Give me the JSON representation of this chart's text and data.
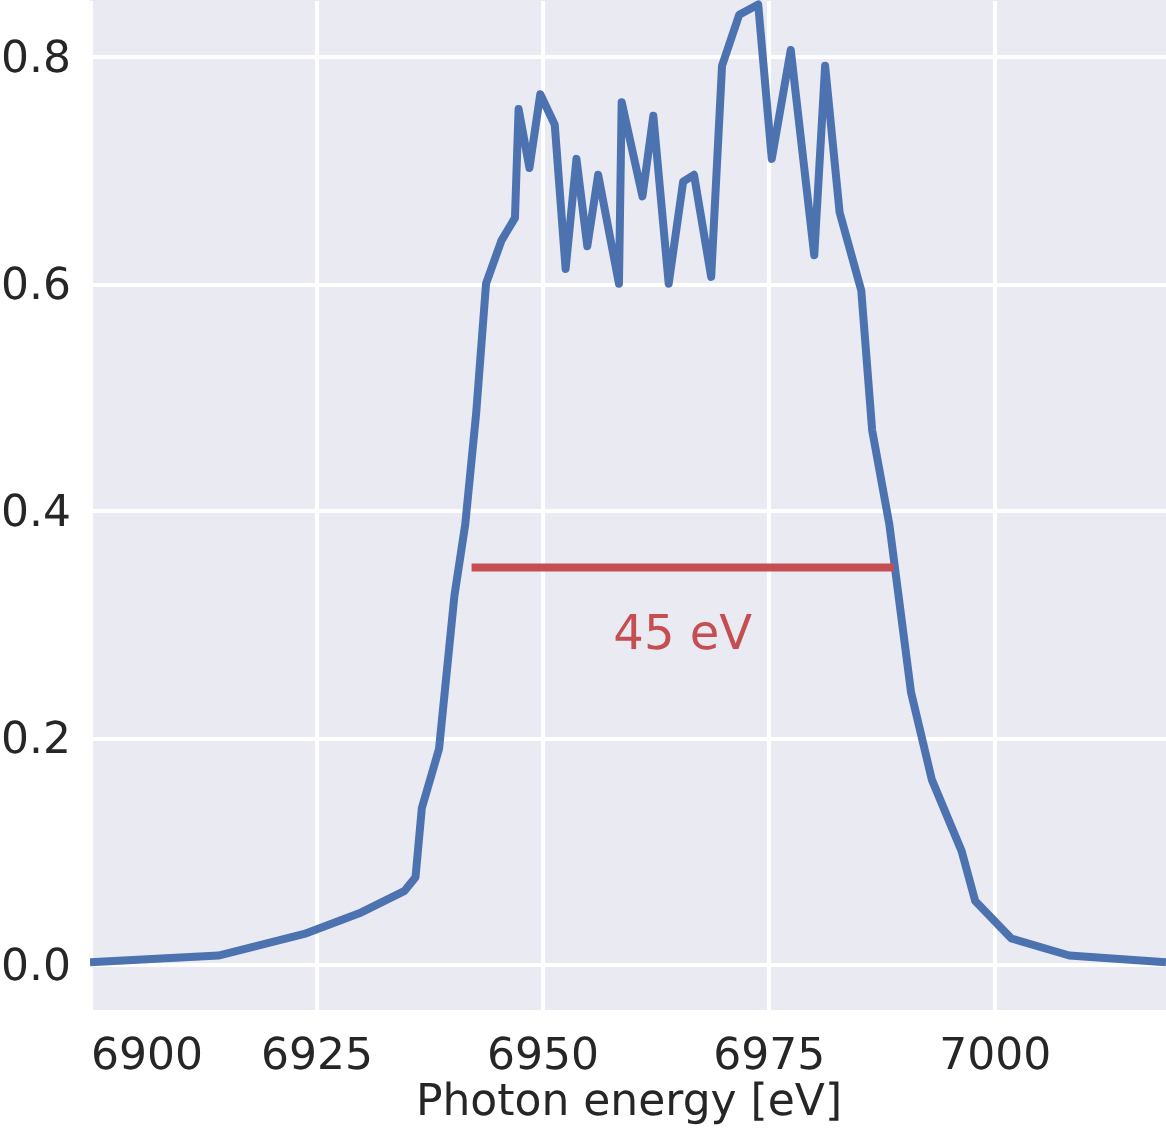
{
  "chart_data": {
    "type": "line",
    "xlabel": "Photon energy [eV]",
    "xlim": [
      6900,
      7019
    ],
    "xticks": [
      6900,
      6925,
      6950,
      6975,
      7000
    ],
    "ylim": [
      -0.04,
      0.85
    ],
    "yticks": [
      {
        "value": 0,
        "label": "0.0"
      },
      0.2,
      0.4,
      0.6,
      0.8
    ],
    "grid": true,
    "series": [
      {
        "color": "#4c72b0",
        "x": [
          6900,
          6914.2,
          6923.7,
          6930,
          6934.8,
          6936,
          6936.7,
          6938.6,
          6940.3,
          6941.5,
          6942.7,
          6943.8,
          6945.5,
          6947,
          6947.4,
          6948.6,
          6949.8,
          6951.4,
          6952.6,
          6953.8,
          6955,
          6956.2,
          6958.5,
          6958.8,
          6961.1,
          6962.3,
          6964,
          6965.6,
          6966.8,
          6968.7,
          6969.9,
          6971.8,
          6973.9,
          6975.4,
          6977.5,
          6980.1,
          6981.3,
          6982.9,
          6985.3,
          6986.5,
          6988.4,
          6990.8,
          6993.1,
          6996.4,
          6997.9,
          7001.9,
          7008.3,
          7019
        ],
        "values": [
          0.002,
          0.008,
          0.027,
          0.046,
          0.065,
          0.077,
          0.138,
          0.19,
          0.325,
          0.388,
          0.485,
          0.6,
          0.638,
          0.658,
          0.754,
          0.702,
          0.767,
          0.74,
          0.613,
          0.71,
          0.633,
          0.696,
          0.6,
          0.76,
          0.677,
          0.748,
          0.6,
          0.69,
          0.696,
          0.606,
          0.792,
          0.837,
          0.846,
          0.71,
          0.806,
          0.625,
          0.792,
          0.663,
          0.594,
          0.471,
          0.388,
          0.24,
          0.163,
          0.1,
          0.056,
          0.023,
          0.008,
          0.002
        ]
      },
      {
        "color": "#c44e52",
        "x": [
          6942.2,
          6988.9
        ],
        "values": [
          0.35,
          0.35
        ]
      }
    ],
    "annotations": [
      "45 eV"
    ]
  }
}
